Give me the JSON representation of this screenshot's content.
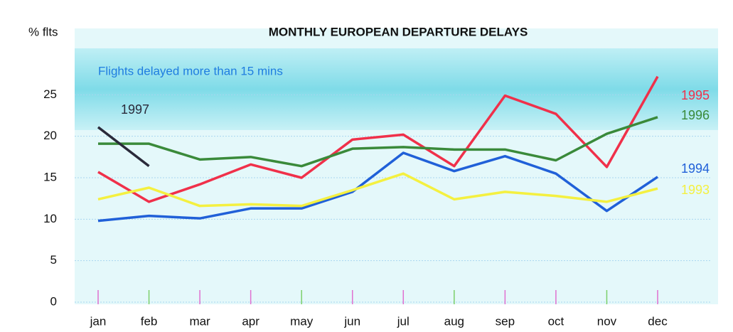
{
  "chart_data": {
    "type": "line",
    "title": "MONTHLY EUROPEAN DEPARTURE DELAYS",
    "ylabel": "% flts",
    "annotation": "Flights delayed more than 15 mins",
    "categories": [
      "jan",
      "feb",
      "mar",
      "apr",
      "may",
      "jun",
      "jul",
      "aug",
      "sep",
      "oct",
      "nov",
      "dec"
    ],
    "series": [
      {
        "name": "1995",
        "color": "#f0304a",
        "values": [
          15.7,
          12.1,
          14.2,
          16.6,
          15.0,
          19.6,
          20.2,
          16.4,
          24.9,
          22.7,
          16.3,
          27.2
        ]
      },
      {
        "name": "1996",
        "color": "#3a8a3a",
        "values": [
          19.1,
          19.1,
          17.2,
          17.5,
          16.4,
          18.5,
          18.7,
          18.4,
          18.4,
          17.1,
          20.3,
          22.3
        ]
      },
      {
        "name": "1994",
        "color": "#2060d8",
        "values": [
          9.8,
          10.4,
          10.1,
          11.3,
          11.3,
          13.3,
          18.0,
          15.8,
          17.6,
          15.5,
          11.0,
          15.1
        ]
      },
      {
        "name": "1993",
        "color": "#f4f040",
        "values": [
          12.4,
          13.8,
          11.6,
          11.8,
          11.6,
          13.5,
          15.5,
          12.4,
          13.3,
          12.8,
          12.1,
          13.7
        ]
      },
      {
        "name": "1997",
        "color": "#2a2a3a",
        "values": [
          21.1,
          16.4,
          null,
          null,
          null,
          null,
          null,
          null,
          null,
          null,
          null,
          null
        ]
      }
    ],
    "ylim": [
      0,
      33
    ],
    "yticks": [
      0,
      5,
      10,
      15,
      20,
      25
    ],
    "grid": true
  }
}
